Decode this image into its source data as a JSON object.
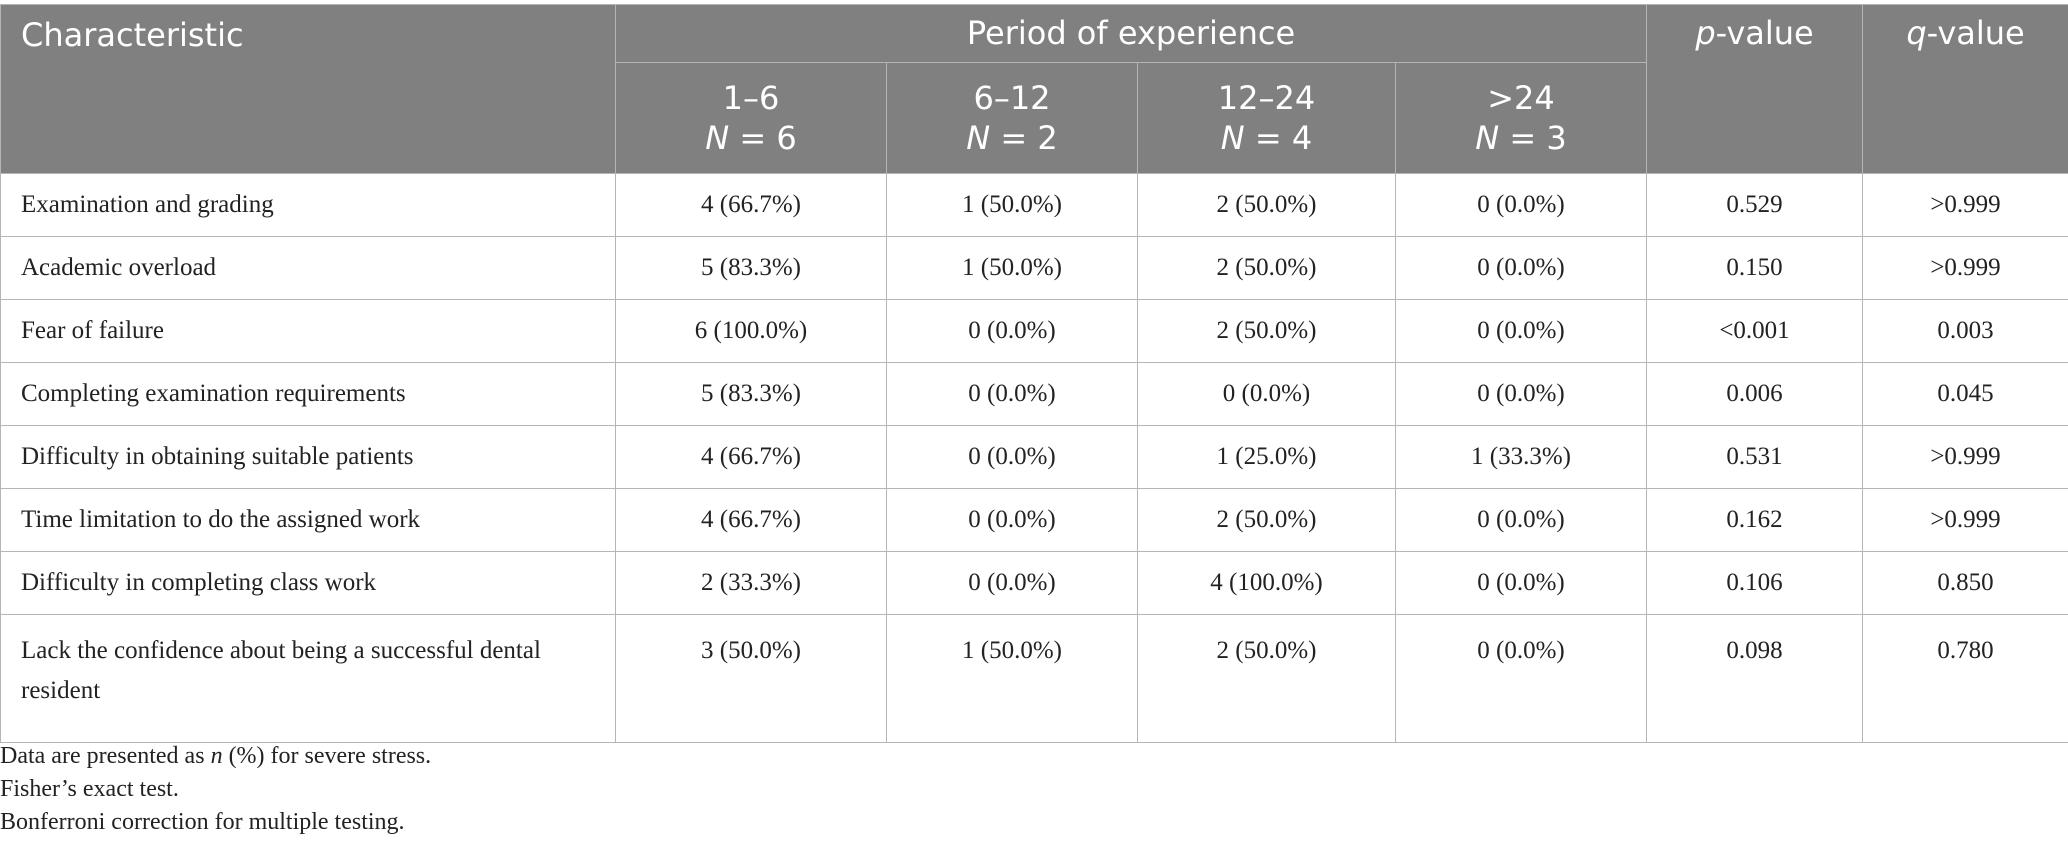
{
  "header": {
    "characteristic": "Characteristic",
    "period_group": "Period of experience",
    "periods": [
      {
        "range": "1–6",
        "n_label": "N",
        "n": "= 6"
      },
      {
        "range": "6–12",
        "n_label": "N",
        "n": "= 2"
      },
      {
        "range": "12–24",
        "n_label": "N",
        "n": "= 4"
      },
      {
        "range": ">24",
        "n_label": "N",
        "n": "= 3"
      }
    ],
    "p_letter": "p",
    "p_rest": "-value",
    "q_letter": "q",
    "q_rest": "-value"
  },
  "rows": [
    {
      "label": "Examination and grading",
      "c": [
        "4 (66.7%)",
        "1 (50.0%)",
        "2 (50.0%)",
        "0 (0.0%)"
      ],
      "p": "0.529",
      "q": ">0.999"
    },
    {
      "label": "Academic overload",
      "c": [
        "5 (83.3%)",
        "1 (50.0%)",
        "2 (50.0%)",
        "0 (0.0%)"
      ],
      "p": "0.150",
      "q": ">0.999"
    },
    {
      "label": "Fear of failure",
      "c": [
        "6 (100.0%)",
        "0 (0.0%)",
        "2 (50.0%)",
        "0 (0.0%)"
      ],
      "p": "<0.001",
      "q": "0.003"
    },
    {
      "label": "Completing examination requirements",
      "c": [
        "5 (83.3%)",
        "0 (0.0%)",
        "0 (0.0%)",
        "0 (0.0%)"
      ],
      "p": "0.006",
      "q": "0.045"
    },
    {
      "label": "Difficulty in obtaining suitable patients",
      "c": [
        "4 (66.7%)",
        "0 (0.0%)",
        "1 (25.0%)",
        "1 (33.3%)"
      ],
      "p": "0.531",
      "q": ">0.999"
    },
    {
      "label": "Time limitation to do the assigned work",
      "c": [
        "4 (66.7%)",
        "0 (0.0%)",
        "2 (50.0%)",
        "0 (0.0%)"
      ],
      "p": "0.162",
      "q": ">0.999"
    },
    {
      "label": "Difficulty in completing class work",
      "c": [
        "2 (33.3%)",
        "0 (0.0%)",
        "4 (100.0%)",
        "0 (0.0%)"
      ],
      "p": "0.106",
      "q": "0.850"
    },
    {
      "label": "Lack the confidence about being a successful dental resident",
      "c": [
        "3 (50.0%)",
        "1 (50.0%)",
        "2 (50.0%)",
        "0 (0.0%)"
      ],
      "p": "0.098",
      "q": "0.780"
    }
  ],
  "notes": {
    "n1_pre": "Data are presented as ",
    "n1_italic": "n",
    "n1_post": " (%) for severe stress.",
    "n2": "Fisher’s exact test.",
    "n3": "Bonferroni correction for multiple testing."
  }
}
